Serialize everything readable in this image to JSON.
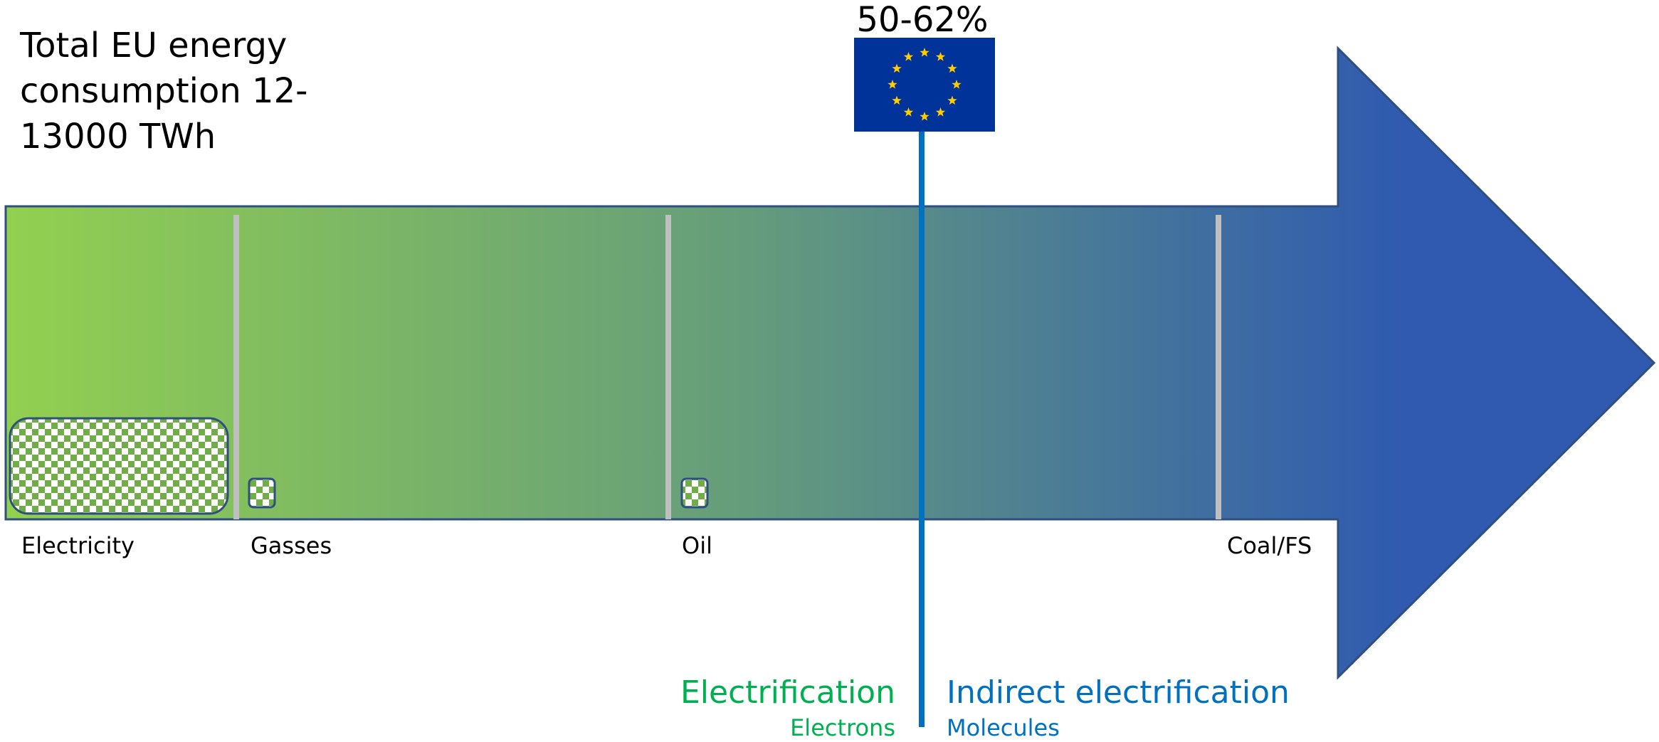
{
  "title_lines": [
    "Total EU energy",
    "consumption 12-",
    "13000 TWh"
  ],
  "target_label": "50-62%",
  "flag": {
    "name": "eu-flag",
    "background": "#003399",
    "star_color": "#FFCC00",
    "star_count": 12
  },
  "categories": [
    {
      "id": "electricity",
      "label": "Electricity"
    },
    {
      "id": "gasses",
      "label": "Gasses"
    },
    {
      "id": "oil",
      "label": "Oil"
    },
    {
      "id": "coal",
      "label": "Coal/FS"
    }
  ],
  "left_side": {
    "title": "Electrification",
    "subtitle": "Electrons",
    "color": "#00B050"
  },
  "right_side": {
    "title": "Indirect electrification",
    "subtitle": "Molecules",
    "color": "#0070C0"
  },
  "colors": {
    "arrow_start": "#92D050",
    "arrow_end": "#2F5AB0",
    "arrow_border": "#2F4F7F",
    "divider": "#BFBFBF",
    "marker_line": "#0070C0",
    "checker_green": "#70AD47",
    "checker_border": "#2F4F7F"
  }
}
